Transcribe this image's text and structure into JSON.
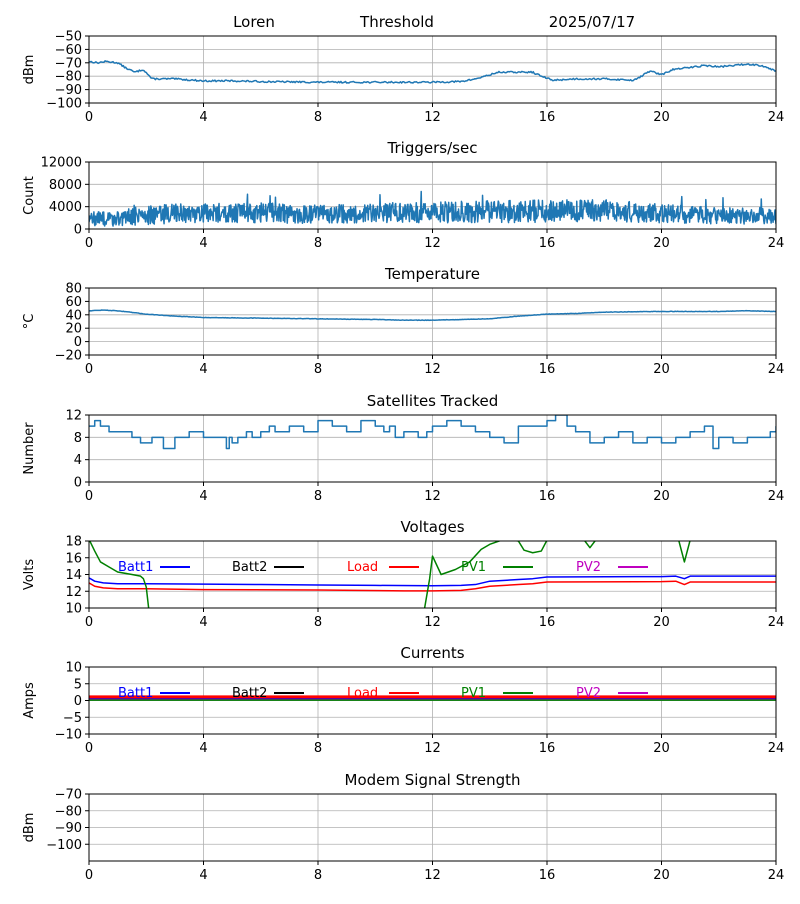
{
  "header": {
    "station": "Loren",
    "mode": "Threshold",
    "date": "2025/07/17"
  },
  "colors": {
    "default": "#1f77b4",
    "grid": "#b0b0b0",
    "axis": "#000000"
  },
  "chart_data": [
    {
      "id": "rssi",
      "type": "line",
      "title": "",
      "ylabel": "dBm",
      "xlim": [
        0,
        24
      ],
      "ylim": [
        -100,
        -50
      ],
      "xticks": [
        0,
        4,
        8,
        12,
        16,
        20,
        24
      ],
      "yticks": [
        -100,
        -90,
        -80,
        -70,
        -60,
        -50
      ],
      "grid": true,
      "series": [
        {
          "color": "#1f77b4",
          "noise": 0.6,
          "x": [
            0,
            0.3,
            0.6,
            1.0,
            1.3,
            1.6,
            1.9,
            2.2,
            2.5,
            3.0,
            4.0,
            5.0,
            6.0,
            8.0,
            10.0,
            12.0,
            13.0,
            13.5,
            14.0,
            14.3,
            15.0,
            15.5,
            15.8,
            16.2,
            17.0,
            18.0,
            19.0,
            19.3,
            19.6,
            20.0,
            20.4,
            20.8,
            21.5,
            22.0,
            23.0,
            23.5,
            24.0
          ],
          "y": [
            -69,
            -70,
            -69,
            -70,
            -74,
            -77,
            -75,
            -82,
            -82,
            -82,
            -83.5,
            -83.5,
            -84,
            -84.5,
            -84.5,
            -84.5,
            -84,
            -82,
            -79,
            -77,
            -77,
            -77,
            -80,
            -83,
            -82,
            -82,
            -83,
            -80,
            -76,
            -79,
            -75,
            -74,
            -72,
            -73,
            -71,
            -72,
            -76
          ]
        }
      ]
    },
    {
      "id": "triggers",
      "type": "line",
      "title": "Triggers/sec",
      "ylabel": "Count",
      "xlim": [
        0,
        24
      ],
      "ylim": [
        0,
        12000
      ],
      "xticks": [
        0,
        4,
        8,
        12,
        16,
        20,
        24
      ],
      "yticks": [
        0,
        4000,
        8000,
        12000
      ],
      "grid": true,
      "series": [
        {
          "color": "#1f77b4",
          "noisy": true,
          "x": [
            0,
            1,
            2,
            4,
            6,
            8,
            10,
            12,
            14,
            16,
            18,
            20,
            22,
            24
          ],
          "y": [
            1800,
            1800,
            2600,
            2900,
            2900,
            2600,
            2800,
            3000,
            3100,
            3200,
            3300,
            2800,
            2400,
            2200
          ],
          "amp": [
            1300,
            1300,
            1800,
            1700,
            1800,
            1700,
            1700,
            1900,
            2000,
            2000,
            2000,
            1700,
            1500,
            1400
          ]
        }
      ]
    },
    {
      "id": "temperature",
      "type": "line",
      "title": "Temperature",
      "ylabel": "°C",
      "xlim": [
        0,
        24
      ],
      "ylim": [
        -20,
        80
      ],
      "xticks": [
        0,
        4,
        8,
        12,
        16,
        20,
        24
      ],
      "yticks": [
        -20,
        0,
        20,
        40,
        60,
        80
      ],
      "grid": true,
      "series": [
        {
          "color": "#1f77b4",
          "noise": 0.3,
          "x": [
            0,
            0.5,
            1,
            2,
            3,
            4,
            6,
            8,
            10,
            11,
            12,
            13,
            14,
            15,
            16,
            17,
            18,
            20,
            22,
            23,
            24
          ],
          "y": [
            46,
            47,
            46,
            41,
            38,
            36,
            35,
            34,
            33,
            32,
            32,
            33,
            34,
            38,
            41,
            42,
            44,
            45,
            45,
            46,
            45
          ]
        }
      ]
    },
    {
      "id": "satellites",
      "type": "line",
      "title": "Satellites Tracked",
      "ylabel": "Number",
      "xlim": [
        0,
        24
      ],
      "ylim": [
        0,
        12
      ],
      "xticks": [
        0,
        4,
        8,
        12,
        16,
        20,
        24
      ],
      "yticks": [
        0,
        4,
        8,
        12
      ],
      "grid": true,
      "series": [
        {
          "color": "#1f77b4",
          "step": true,
          "x": [
            0,
            0.2,
            0.4,
            0.7,
            1.3,
            1.5,
            1.8,
            2.2,
            2.6,
            3.0,
            3.5,
            4.0,
            4.5,
            4.8,
            4.9,
            5.0,
            5.2,
            5.5,
            5.7,
            6.0,
            6.3,
            6.5,
            7.0,
            7.5,
            8.0,
            8.5,
            9.0,
            9.5,
            10.0,
            10.3,
            10.5,
            10.7,
            11.0,
            11.5,
            11.8,
            12.0,
            12.5,
            13.0,
            13.5,
            14.0,
            14.5,
            15.0,
            15.5,
            16.0,
            16.3,
            16.7,
            17.0,
            17.5,
            18.0,
            18.5,
            19.0,
            19.5,
            20.0,
            20.5,
            21.0,
            21.5,
            21.8,
            22.0,
            22.5,
            23.0,
            23.8,
            24.0
          ],
          "y": [
            10,
            11,
            10,
            9,
            9,
            8,
            7,
            8,
            6,
            8,
            9,
            8,
            8,
            6,
            8,
            7,
            8,
            9,
            8,
            9,
            10,
            9,
            10,
            9,
            11,
            10,
            9,
            11,
            10,
            9,
            10,
            8,
            9,
            8,
            9,
            10,
            11,
            10,
            9,
            8,
            7,
            10,
            10,
            11,
            12,
            10,
            9,
            7,
            8,
            9,
            7,
            8,
            7,
            8,
            9,
            10,
            6,
            8,
            7,
            8,
            9,
            10
          ]
        }
      ]
    },
    {
      "id": "voltages",
      "type": "line",
      "title": "Voltages",
      "ylabel": "Volts",
      "xlim": [
        0,
        24
      ],
      "ylim": [
        10,
        18
      ],
      "xticks": [
        0,
        4,
        8,
        12,
        16,
        20,
        24
      ],
      "yticks": [
        10,
        12,
        14,
        16,
        18
      ],
      "grid": true,
      "legend": [
        {
          "name": "Batt1",
          "color": "#0000ff"
        },
        {
          "name": "Batt2",
          "color": "#000000"
        },
        {
          "name": "Load",
          "color": "#ff0000"
        },
        {
          "name": "PV1",
          "color": "#008000"
        },
        {
          "name": "PV2",
          "color": "#bf00bf"
        }
      ],
      "series": [
        {
          "name": "Batt1",
          "color": "#0000ff",
          "x": [
            0,
            0.2,
            0.5,
            1.0,
            2.0,
            4.0,
            6.0,
            8.0,
            10.0,
            12.0,
            13.0,
            13.5,
            14.0,
            15.0,
            15.5,
            16.0,
            20.0,
            20.5,
            20.8,
            21.0,
            24.0
          ],
          "y": [
            13.6,
            13.2,
            13.0,
            12.9,
            12.9,
            12.85,
            12.8,
            12.75,
            12.7,
            12.65,
            12.7,
            12.8,
            13.2,
            13.4,
            13.5,
            13.7,
            13.75,
            13.8,
            13.5,
            13.8,
            13.8
          ]
        },
        {
          "name": "Load",
          "color": "#ff0000",
          "x": [
            0,
            0.2,
            0.5,
            1.0,
            2.0,
            4.0,
            8.0,
            11.0,
            12.0,
            13.0,
            13.5,
            14.0,
            15.0,
            15.5,
            16.0,
            20.0,
            20.5,
            20.8,
            21.0,
            24.0
          ],
          "y": [
            13.0,
            12.6,
            12.4,
            12.3,
            12.3,
            12.2,
            12.15,
            12.05,
            12.05,
            12.1,
            12.3,
            12.6,
            12.8,
            12.9,
            13.1,
            13.15,
            13.2,
            12.8,
            13.1,
            13.1
          ]
        },
        {
          "name": "PV1",
          "color": "#008000",
          "segments": [
            {
              "x": [
                0,
                0.2,
                0.4,
                0.7,
                1.0,
                1.5,
                1.8,
                1.9,
                2.0,
                2.1
              ],
              "y": [
                18.2,
                16.8,
                15.5,
                14.9,
                14.3,
                14.0,
                13.8,
                13.5,
                12.5,
                9.5
              ]
            },
            {
              "x": [
                11.7,
                11.9,
                12.0,
                12.3,
                12.8,
                13.3,
                13.7,
                14.0,
                14.5,
                15.0,
                15.2,
                15.5,
                15.8,
                16.0
              ],
              "y": [
                9.5,
                13.5,
                16.2,
                14.0,
                14.6,
                15.5,
                17.0,
                17.6,
                18.2,
                18.0,
                16.9,
                16.6,
                16.8,
                18.1
              ]
            },
            {
              "x": [
                17.3,
                17.5,
                17.7
              ],
              "y": [
                18.1,
                17.2,
                18.1
              ]
            },
            {
              "x": [
                20.6,
                20.8,
                21.0
              ],
              "y": [
                18.1,
                15.5,
                18.1
              ]
            }
          ]
        }
      ]
    },
    {
      "id": "currents",
      "type": "line",
      "title": "Currents",
      "ylabel": "Amps",
      "xlim": [
        0,
        24
      ],
      "ylim": [
        -10,
        10
      ],
      "xticks": [
        0,
        4,
        8,
        12,
        16,
        20,
        24
      ],
      "yticks": [
        -10,
        -5,
        0,
        5,
        10
      ],
      "grid": true,
      "legend": [
        {
          "name": "Batt1",
          "color": "#0000ff"
        },
        {
          "name": "Batt2",
          "color": "#000000"
        },
        {
          "name": "Load",
          "color": "#ff0000"
        },
        {
          "name": "PV1",
          "color": "#008000"
        },
        {
          "name": "PV2",
          "color": "#bf00bf"
        }
      ],
      "series": [
        {
          "name": "Load",
          "color": "#ff0000",
          "width": 3.5,
          "x": [
            0,
            24
          ],
          "y": [
            1.0,
            1.0
          ]
        },
        {
          "name": "Batt1",
          "color": "#0000ff",
          "width": 1.5,
          "x": [
            0,
            24
          ],
          "y": [
            0.4,
            0.4
          ]
        },
        {
          "name": "PV2",
          "color": "#bf00bf",
          "width": 1.5,
          "x": [
            0,
            24
          ],
          "y": [
            0.2,
            0.2
          ]
        },
        {
          "name": "PV1",
          "color": "#008000",
          "width": 1.5,
          "x": [
            0,
            24
          ],
          "y": [
            0.1,
            0.1
          ]
        }
      ]
    },
    {
      "id": "modem",
      "type": "line",
      "title": "Modem Signal Strength",
      "ylabel": "dBm",
      "xlim": [
        0,
        24
      ],
      "ylim": [
        -110,
        -70
      ],
      "xticks": [
        0,
        4,
        8,
        12,
        16,
        20,
        24
      ],
      "yticks": [
        -100,
        -90,
        -80,
        -70
      ],
      "grid": true,
      "series": []
    }
  ]
}
